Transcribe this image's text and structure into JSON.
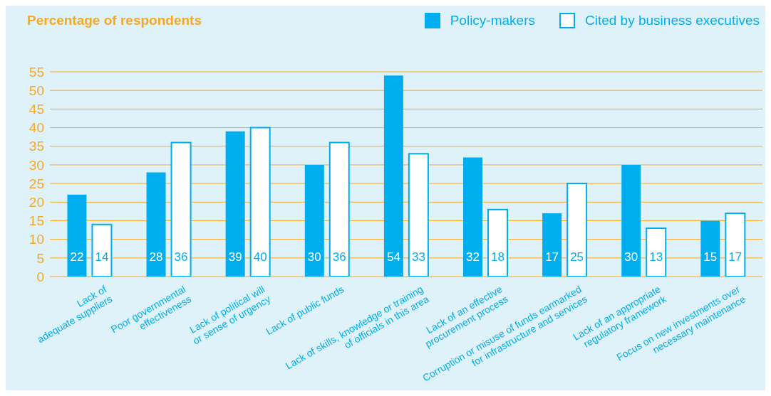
{
  "chart_data": {
    "type": "bar",
    "title": "Percentage of respondents",
    "categories": [
      "Lack of\nadequate suppliers",
      "Poor governmental\neffectiveness",
      "Lack of political will\nor sense of urgency",
      "Lack of public funds",
      "Lack of skills, knowledge or training\nof officials in this area",
      "Lack of an effective\nprocurement process",
      "Corruption or misuse of funds earmarked\nfor infrastructure and services",
      "Lack of an appropriate\nregulatory framework",
      "Focus on new investments over\nnecessary maintenance"
    ],
    "series": [
      {
        "name": "Policy-makers",
        "color": "#00aeef",
        "values": [
          22,
          28,
          39,
          30,
          54,
          32,
          17,
          30,
          15
        ]
      },
      {
        "name": "Cited by business executives",
        "color": "#ffffff",
        "values": [
          14,
          36,
          40,
          36,
          33,
          18,
          25,
          13,
          17
        ]
      }
    ],
    "ylim": [
      0,
      55
    ],
    "yticks": [
      0,
      5,
      10,
      15,
      20,
      25,
      30,
      35,
      40,
      45,
      50,
      55
    ],
    "grid": "y",
    "legend": "top right",
    "data_labels": true
  }
}
